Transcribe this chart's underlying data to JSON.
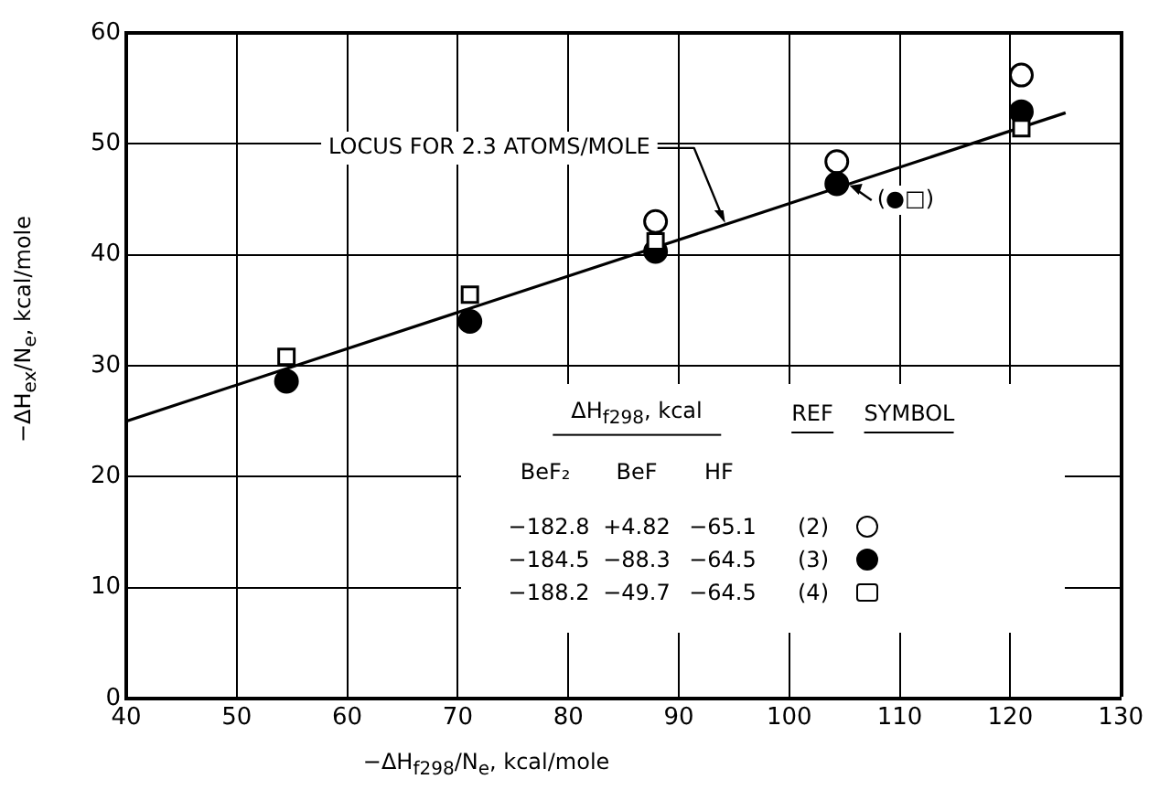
{
  "chart_data": {
    "type": "scatter",
    "xlabel": "−ΔH$_{f298}$/N$_{e}$, kcal/mole",
    "ylabel": "−ΔH$_{ex}$/N$_{e}$, kcal/mole",
    "xlim": [
      40,
      130
    ],
    "xticks": [
      40,
      50,
      60,
      70,
      80,
      90,
      100,
      110,
      120,
      130
    ],
    "ylim": [
      0,
      60
    ],
    "yticks": [
      0,
      10,
      20,
      30,
      40,
      50,
      60
    ],
    "grid": true,
    "legend": "bottom",
    "series": [
      {
        "type": "line",
        "color": "#000000",
        "marker": "none",
        "line_style": "solid",
        "x": [
          40,
          125
        ],
        "values": [
          25,
          52.8
        ]
      },
      {
        "name": "(2)",
        "color": "#ffffff",
        "marker": "circle",
        "x": [
          87.9,
          104.3,
          121
        ],
        "values": [
          43.0,
          48.4,
          56.2
        ]
      },
      {
        "name": "(3)",
        "color": "#000000",
        "marker": "circle",
        "x": [
          54.5,
          71.1,
          87.9,
          104.3,
          121
        ],
        "values": [
          28.6,
          34.0,
          40.3,
          46.4,
          52.9
        ]
      },
      {
        "name": "(4)",
        "color": "#ffffff",
        "marker": "square",
        "x": [
          54.5,
          71.1,
          87.9,
          104.3,
          121
        ],
        "values": [
          30.8,
          36.4,
          41.2,
          null,
          51.4
        ]
      }
    ],
    "annotations": [
      {
        "text": "LOCUS FOR 2.3 ATOMS/MOLE",
        "x": 94.2,
        "y": 42.7
      },
      {
        "text": "(●□)",
        "x": 104.3,
        "y": 46.4
      },
      "REF",
      "ΔH$_{f298}$, kcal",
      "SYMBOL",
      "BeF₂",
      "BeF",
      "HF",
      "−182.8",
      "+4.82",
      "−65.1",
      "−184.5",
      "−88.3",
      "−64.5",
      "−188.2",
      "−49.7",
      "−64.5"
    ]
  }
}
